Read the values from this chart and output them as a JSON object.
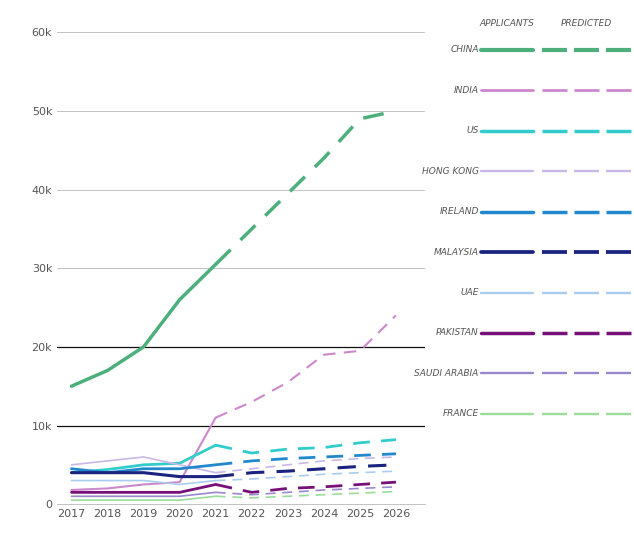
{
  "years_actual": [
    2017,
    2018,
    2019,
    2020,
    2021
  ],
  "years_predicted": [
    2021,
    2022,
    2023,
    2024,
    2025,
    2026
  ],
  "series": [
    {
      "name": "CHINA",
      "color": "#4daf7c",
      "lw": 2.5,
      "actual": [
        15000,
        17000,
        20000,
        26000,
        30500
      ],
      "predicted": [
        30500,
        35000,
        39500,
        44000,
        49000,
        50000
      ]
    },
    {
      "name": "INDIA",
      "color": "#cc88cc",
      "lw": 1.5,
      "actual": [
        1800,
        2000,
        2500,
        2800,
        11000
      ],
      "predicted": [
        11000,
        13000,
        15500,
        19000,
        19500,
        24000
      ]
    },
    {
      "name": "US",
      "color": "#33cccc",
      "lw": 2.0,
      "actual": [
        4000,
        4400,
        5000,
        5200,
        7500
      ],
      "predicted": [
        7500,
        6500,
        7000,
        7200,
        7800,
        8200
      ]
    },
    {
      "name": "HONG KONG",
      "color": "#c8b8e8",
      "lw": 1.2,
      "actual": [
        5000,
        5500,
        6000,
        5000,
        4000
      ],
      "predicted": [
        4000,
        4500,
        5000,
        5500,
        5800,
        6000
      ]
    },
    {
      "name": "IRELAND",
      "color": "#2288cc",
      "lw": 2.0,
      "actual": [
        4500,
        4000,
        4500,
        4500,
        5000
      ],
      "predicted": [
        5000,
        5500,
        5800,
        6000,
        6200,
        6400
      ]
    },
    {
      "name": "MALAYSIA",
      "color": "#1a237e",
      "lw": 2.2,
      "actual": [
        4000,
        4000,
        4000,
        3500,
        3500
      ],
      "predicted": [
        3500,
        4000,
        4200,
        4500,
        4800,
        5000
      ]
    },
    {
      "name": "UAE",
      "color": "#aaccee",
      "lw": 1.2,
      "actual": [
        3000,
        3000,
        3000,
        2500,
        3000
      ],
      "predicted": [
        3000,
        3200,
        3500,
        3800,
        4000,
        4200
      ]
    },
    {
      "name": "PAKISTAN",
      "color": "#771177",
      "lw": 2.0,
      "actual": [
        1500,
        1500,
        1500,
        1500,
        2500
      ],
      "predicted": [
        2500,
        1500,
        2000,
        2200,
        2500,
        2800
      ]
    },
    {
      "name": "SAUDI ARABIA",
      "color": "#9988cc",
      "lw": 1.2,
      "actual": [
        1000,
        1000,
        1000,
        1000,
        1500
      ],
      "predicted": [
        1500,
        1200,
        1500,
        1800,
        2000,
        2200
      ]
    },
    {
      "name": "FRANCE",
      "color": "#99dd99",
      "lw": 1.2,
      "actual": [
        500,
        500,
        500,
        500,
        1000
      ],
      "predicted": [
        1000,
        800,
        1000,
        1200,
        1400,
        1600
      ]
    }
  ],
  "ylim": [
    0,
    62000
  ],
  "yticks": [
    0,
    10000,
    20000,
    30000,
    40000,
    50000,
    60000
  ],
  "ytick_labels": [
    "0",
    "10k",
    "20k",
    "30k",
    "40k",
    "50k",
    "60k"
  ],
  "bold_hlines": [
    10000,
    20000
  ],
  "background_color": "#ffffff",
  "grid_color": "#aaaaaa",
  "text_color": "#555555",
  "legend_title_applicants": "APPLICANTS",
  "legend_title_predicted": "PREDICTED"
}
